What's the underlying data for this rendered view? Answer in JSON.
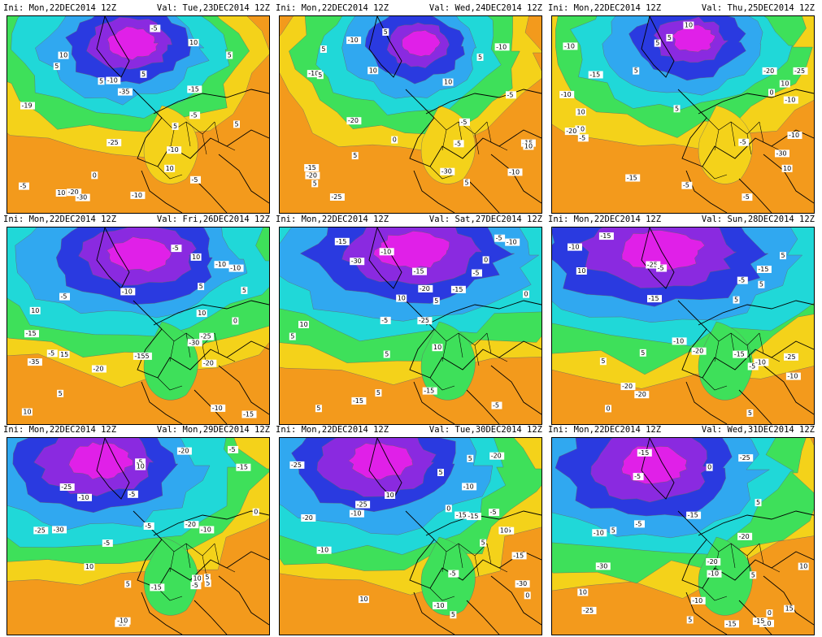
{
  "panels": [
    {
      "init": "Ini: Mon,22DEC2014 12Z",
      "valid": "Val: Tue,23DEC2014 12Z",
      "labels": [
        "-20",
        "-25",
        "-30",
        "-35",
        "-10",
        "-15",
        "-10",
        "-5",
        "-5",
        "5",
        "0",
        "10",
        "5",
        "10",
        "-5",
        "5",
        "-5",
        "-10",
        "-19",
        "10",
        "5",
        "10",
        "5",
        "5"
      ]
    },
    {
      "init": "Ini: Mon,22DEC2014 12Z",
      "valid": "Val: Wed,24DEC2014 12Z",
      "labels": [
        "-10",
        "-25",
        "-20",
        "-30",
        "-20",
        "-10",
        "-15",
        "-15",
        "-10",
        "-5",
        "-5",
        "-10",
        "-5",
        "5",
        "5",
        "10",
        "0",
        "10",
        "5",
        "5",
        "10",
        "5",
        "5",
        "5"
      ]
    },
    {
      "init": "Ini: Mon,22DEC2014 12Z",
      "valid": "Val: Thu,25DEC2014 12Z",
      "labels": [
        "-10",
        "-25",
        "-30",
        "-20",
        "-10",
        "-15",
        "-5",
        "-10",
        "-10",
        "-15",
        "10",
        "0",
        "5",
        "-5",
        "10",
        "5",
        "5",
        "10",
        "10",
        "-5",
        "-5",
        "-20",
        "5",
        "10"
      ]
    },
    {
      "init": "Ini: Mon,22DEC2014 12Z",
      "valid": "Val: Fri,26DEC2014 12Z",
      "labels": [
        "-10",
        "-25",
        "-30",
        "-35",
        "-20",
        "-20",
        "-15",
        "-10",
        "-5",
        "-10",
        "-10",
        "-155",
        "-15",
        "10",
        "10",
        "0",
        "5",
        "-5",
        "5",
        "10",
        "15",
        "5",
        "-5",
        "10"
      ]
    },
    {
      "init": "Ini: Mon,22DEC2014 12Z",
      "valid": "Val: Sat,27DEC2014 12Z",
      "labels": [
        "-15",
        "-15",
        "-25",
        "-30",
        "-20",
        "-15",
        "-10",
        "-5",
        "-15",
        "-5",
        "0",
        "5",
        "10",
        "-5",
        "5",
        "5",
        "10",
        "10",
        "5",
        "0",
        "5",
        "-5",
        "-10",
        "-15"
      ]
    },
    {
      "init": "Ini: Mon,22DEC2014 12Z",
      "valid": "Val: Sun,28DEC2014 12Z",
      "labels": [
        "-20",
        "-25",
        "-15",
        "-10",
        "-20",
        "-15",
        "-15",
        "-10",
        "-5",
        "-10",
        "0",
        "-5",
        "5",
        "5",
        "10",
        "5",
        "5",
        "5",
        "-20",
        "-25",
        "-10",
        "-5",
        "-15",
        "5"
      ]
    },
    {
      "init": "Ini: Mon,22DEC2014 12Z",
      "valid": "Val: Mon,29DEC2014 12Z",
      "labels": [
        "-25",
        "-30",
        "-25",
        "-20",
        "-25",
        "-15",
        "-10",
        "-10",
        "-5",
        "-5",
        "-15",
        "-5",
        "-5",
        "5",
        "10",
        "10",
        "5",
        "0",
        "10",
        "-5",
        "5",
        "-20",
        "-10",
        "-5"
      ]
    },
    {
      "init": "Ini: Mon,22DEC2014 12Z",
      "valid": "Val: Tue,30DEC2014 12Z",
      "labels": [
        "-25",
        "-30",
        "-25",
        "-25",
        "-20",
        "-10",
        "-15",
        "-10",
        "-5",
        "-20",
        "-15",
        "0",
        "10",
        "5",
        "10",
        "5",
        "0",
        "-10",
        "-15",
        "-5",
        "10",
        "5",
        "5",
        "-10"
      ]
    },
    {
      "init": "Ini: Mon,22DEC2014 12Z",
      "valid": "Val: Wed,31DEC2014 12Z",
      "labels": [
        "-30",
        "-25",
        "-20",
        "-25",
        "-20",
        "-15",
        "-10",
        "-15",
        "-15",
        "-10",
        "-5",
        "0",
        "0",
        "5",
        "10",
        "5",
        "5",
        "-15",
        "10",
        "5",
        "-5",
        "-10",
        "15",
        "-20"
      ]
    }
  ],
  "colors": {
    "orange": "#f39a1c",
    "yellow": "#f4d21a",
    "green": "#3ee05a",
    "cyan": "#20d8d8",
    "lightblue": "#30a8f0",
    "blue": "#2a3ae0",
    "violet": "#8a2ae0",
    "magenta": "#e020e8"
  }
}
